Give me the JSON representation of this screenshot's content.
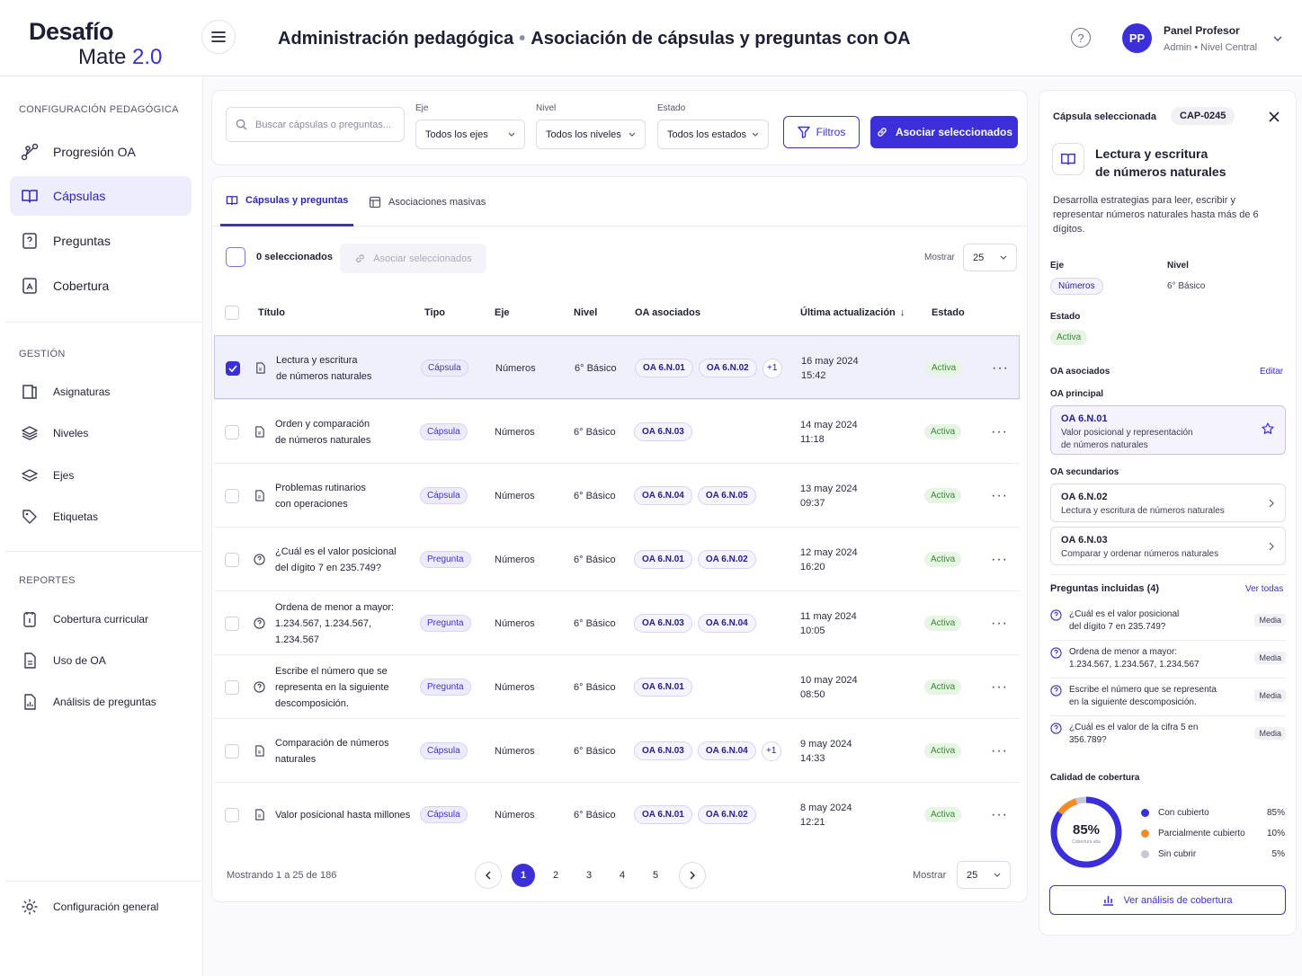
{
  "app": {
    "logo_line1": "Desafío",
    "logo_line2": "Mate",
    "logo_version": "2.0"
  },
  "header": {
    "breadcrumb_1": "Administración pedagógica",
    "separator": "•",
    "breadcrumb_2": "Asociación de cápsulas y preguntas con OA",
    "help": "?",
    "user": {
      "initials": "PP",
      "name": "Panel Profesor",
      "role": "Admin • Nivel Central"
    }
  },
  "sidebar": {
    "section_config": "CONFIGURACIÓN PEDAGÓGICA",
    "config_items": [
      {
        "label": "Progresión OA",
        "icon": "progression-icon"
      },
      {
        "label": "Cápsulas",
        "icon": "book-icon"
      },
      {
        "label": "Preguntas",
        "icon": "question-doc-icon"
      },
      {
        "label": "Cobertura",
        "icon": "coverage-icon"
      }
    ],
    "section_gestion": "GESTIÓN",
    "gestion_items": [
      {
        "label": "Asignaturas",
        "icon": "subject-icon"
      },
      {
        "label": "Niveles",
        "icon": "layers-icon"
      },
      {
        "label": "Ejes",
        "icon": "stack-icon"
      },
      {
        "label": "Etiquetas",
        "icon": "tag-icon"
      }
    ],
    "section_reportes": "REPORTES",
    "report_items": [
      {
        "label": "Cobertura curricular",
        "icon": "calendar-doc-icon"
      },
      {
        "label": "Uso de OA",
        "icon": "doc-icon"
      },
      {
        "label": "Análisis de preguntas",
        "icon": "chart-doc-icon"
      }
    ],
    "settings": "Configuración general"
  },
  "filters": {
    "search_placeholder": "Buscar cápsulas o preguntas...",
    "eje_label": "Eje",
    "eje_value": "Todos los ejes",
    "nivel_label": "Nivel",
    "nivel_value": "Todos los niveles",
    "estado_label": "Estado",
    "estado_value": "Todos los estados",
    "filtros_btn": "Filtros",
    "asociar_btn": "Asociar seleccionados"
  },
  "tabs": [
    {
      "label": "Cápsulas y preguntas",
      "active": true
    },
    {
      "label": "Asociaciones masivas",
      "active": false
    }
  ],
  "selection": {
    "count_label": "0 seleccionados",
    "asociar_label": "Asociar seleccionados",
    "mostrar_label": "Mostrar",
    "mostrar_value": "25"
  },
  "table": {
    "headers": [
      "Título",
      "Tipo",
      "Eje",
      "Nivel",
      "OA asociados",
      "Última actualización",
      "Estado"
    ],
    "sort_arrow": "↓",
    "rows": [
      {
        "title": [
          "Lectura y escritura",
          "de números naturales"
        ],
        "type": "Cápsula",
        "eje": "Números",
        "nivel": "6° Básico",
        "oa": [
          "OA 6.N.01",
          "OA 6.N.02"
        ],
        "more": "+1",
        "date": "16 may 2024",
        "time": "15:42",
        "estado": "Activa",
        "checked": true
      },
      {
        "title": [
          "Orden y comparación",
          "de números naturales"
        ],
        "type": "Cápsula",
        "eje": "Números",
        "nivel": "6° Básico",
        "oa": [
          "OA 6.N.03"
        ],
        "more": "",
        "date": "14 may 2024",
        "time": "11:18",
        "estado": "Activa",
        "checked": false
      },
      {
        "title": [
          "Problemas rutinarios",
          "con operaciones"
        ],
        "type": "Cápsula",
        "eje": "Números",
        "nivel": "6° Básico",
        "oa": [
          "OA 6.N.04",
          "OA 6.N.05"
        ],
        "more": "",
        "date": "13 may 2024",
        "time": "09:37",
        "estado": "Activa",
        "checked": false
      },
      {
        "title": [
          "¿Cuál es el valor posicional",
          "del dígito 7 en 235.749?"
        ],
        "type": "Pregunta",
        "eje": "Números",
        "nivel": "6° Básico",
        "oa": [
          "OA 6.N.01",
          "OA 6.N.02"
        ],
        "more": "",
        "date": "12 may 2024",
        "time": "16:20",
        "estado": "Activa",
        "checked": false
      },
      {
        "title": [
          "Ordena de menor a mayor:",
          "1.234.567, 1.234.567,",
          "1.234.567"
        ],
        "type": "Pregunta",
        "eje": "Números",
        "nivel": "6° Básico",
        "oa": [
          "OA 6.N.03",
          "OA 6.N.04"
        ],
        "more": "",
        "date": "11 may 2024",
        "time": "10:05",
        "estado": "Activa",
        "checked": false
      },
      {
        "title": [
          "Escribe el número que se",
          "representa en la siguiente",
          "descomposición."
        ],
        "type": "Pregunta",
        "eje": "Números",
        "nivel": "6° Básico",
        "oa": [
          "OA 6.N.01"
        ],
        "more": "",
        "date": "10 may 2024",
        "time": "08:50",
        "estado": "Activa",
        "checked": false
      },
      {
        "title": [
          "Comparación de números",
          "naturales"
        ],
        "type": "Cápsula",
        "eje": "Números",
        "nivel": "6° Básico",
        "oa": [
          "OA 6.N.03",
          "OA 6.N.04"
        ],
        "more": "+1",
        "date": "9 may 2024",
        "time": "14:33",
        "estado": "Activa",
        "checked": false
      },
      {
        "title": [
          "Valor posicional hasta millones"
        ],
        "type": "Cápsula",
        "eje": "Números",
        "nivel": "6° Básico",
        "oa": [
          "OA 6.N.01",
          "OA 6.N.02"
        ],
        "more": "",
        "date": "8 may 2024",
        "time": "12:21",
        "estado": "Activa",
        "checked": false
      }
    ],
    "row_menu": "···"
  },
  "pagination": {
    "info": "Mostrando 1 a 25 de 186",
    "pages": [
      "1",
      "2",
      "3",
      "4",
      "5"
    ],
    "current": "1",
    "mostrar_label": "Mostrar",
    "mostrar_value": "25"
  },
  "detail": {
    "header_label": "Cápsula seleccionada",
    "code": "CAP-0245",
    "title_1": "Lectura y escritura",
    "title_2": "de números naturales",
    "description": "Desarrolla estrategias para leer, escribir y representar números naturales hasta más de 6 dígitos.",
    "eje_label": "Eje",
    "eje_value": "Números",
    "nivel_label": "Nivel",
    "nivel_value": "6° Básico",
    "estado_label": "Estado",
    "estado_value": "Activa",
    "oa_asociados_label": "OA asociados",
    "editar": "Editar",
    "oa_principal_label": "OA principal",
    "oa_principal": {
      "code": "OA 6.N.01",
      "desc_1": "Valor posicional y representación",
      "desc_2": "de números naturales"
    },
    "oa_secundarios_label": "OA secundarios",
    "oa_secundarios": [
      {
        "code": "OA 6.N.02",
        "desc": "Lectura y escritura de números naturales"
      },
      {
        "code": "OA 6.N.03",
        "desc": "Comparar y ordenar números naturales"
      }
    ],
    "preguntas_label": "Preguntas incluidas (4)",
    "ver_todas": "Ver todas",
    "preguntas": [
      {
        "text_1": "¿Cuál es el valor posicional",
        "text_2": "del dígito 7 en 235.749?",
        "level": "Media"
      },
      {
        "text_1": "Ordena de menor a mayor:",
        "text_2": "1.234.567, 1.234.567, 1.234.567",
        "level": "Media"
      },
      {
        "text_1": "Escribe el número que se representa",
        "text_2": "en la siguiente descomposición.",
        "level": "Media"
      },
      {
        "text_1": "¿Cuál es el valor de la cifra 5 en",
        "text_2": "356.789?",
        "level": "Media"
      }
    ],
    "calidad_label": "Calidad de cobertura",
    "coverage_center": "85%",
    "coverage_sub": "Cobertura alta",
    "ver_analisis": "Ver análisis de cobertura"
  },
  "chart_data": {
    "type": "pie",
    "title": "Calidad de cobertura",
    "categories": [
      "Con cubierto",
      "Parcialmente cubierto",
      "Sin cubrir"
    ],
    "values": [
      85,
      10,
      5
    ],
    "labels": [
      "85%",
      "10%",
      "5%"
    ],
    "colors": [
      "#3b2fd9",
      "#f28c28",
      "#c7c8d3"
    ]
  },
  "colors": {
    "accent": "#3b2fd9",
    "success": "#3c8a33"
  }
}
